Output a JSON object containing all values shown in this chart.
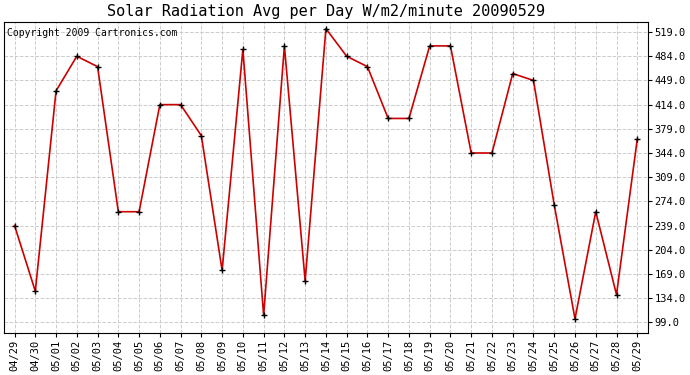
{
  "title": "Solar Radiation Avg per Day W/m2/minute 20090529",
  "copyright": "Copyright 2009 Cartronics.com",
  "dates": [
    "04/29",
    "04/30",
    "05/01",
    "05/02",
    "05/03",
    "05/04",
    "05/05",
    "05/06",
    "05/07",
    "05/08",
    "05/09",
    "05/10",
    "05/11",
    "05/12",
    "05/13",
    "05/14",
    "05/15",
    "05/16",
    "05/17",
    "05/18",
    "05/19",
    "05/20",
    "05/21",
    "05/22",
    "05/23",
    "05/24",
    "05/25",
    "05/26",
    "05/27",
    "05/28",
    "05/29"
  ],
  "values": [
    239,
    144,
    434,
    484,
    469,
    259,
    259,
    414,
    414,
    369,
    174,
    494,
    109,
    499,
    159,
    524,
    484,
    469,
    394,
    394,
    499,
    499,
    344,
    344,
    459,
    449,
    269,
    104,
    259,
    139,
    364
  ],
  "line_color": "#cc0000",
  "marker_color": "#000000",
  "bg_color": "#ffffff",
  "grid_color": "#cccccc",
  "yticks": [
    99.0,
    134.0,
    169.0,
    204.0,
    239.0,
    274.0,
    309.0,
    344.0,
    379.0,
    414.0,
    449.0,
    484.0,
    519.0
  ],
  "ylim": [
    84,
    534
  ],
  "title_fontsize": 11,
  "tick_fontsize": 7.5,
  "copyright_fontsize": 7
}
